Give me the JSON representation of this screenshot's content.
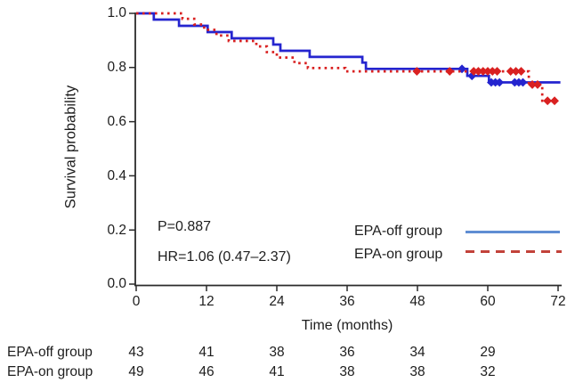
{
  "figure": {
    "background": "#ffffff",
    "text_color": "#1d1d1d",
    "axis_color": "#2b2b2b"
  },
  "chart_data": {
    "type": "line",
    "subtype": "kaplan-meier-survival-steps",
    "title": "",
    "xlabel": "Time (months)",
    "ylabel": "Survival probability",
    "xlim": [
      0,
      72
    ],
    "ylim": [
      0.0,
      1.0
    ],
    "grid": false,
    "legend_position": "lower-right-inside",
    "x_ticks": [
      "0",
      "12",
      "24",
      "36",
      "48",
      "60",
      "72"
    ],
    "y_ticks": [
      "1.0",
      "0.8",
      "0.6",
      "0.4",
      "0.2",
      "0.0"
    ],
    "series": [
      {
        "name": "EPA-off group",
        "line_style": "solid",
        "color": "#2525cf",
        "legend_color": "#5f8dd3",
        "steps": [
          [
            0,
            1.0
          ],
          [
            3.0,
            0.977
          ],
          [
            7.3,
            0.954
          ],
          [
            12.2,
            0.931
          ],
          [
            16.3,
            0.908
          ],
          [
            23.4,
            0.885
          ],
          [
            24.6,
            0.862
          ],
          [
            29.6,
            0.839
          ],
          [
            38.6,
            0.818
          ],
          [
            39.2,
            0.795
          ],
          [
            56.5,
            0.769
          ],
          [
            60.2,
            0.745
          ],
          [
            72.4,
            0.745
          ]
        ],
        "censor_marks": [
          [
            55.6,
            0.795
          ],
          [
            57.3,
            0.769
          ],
          [
            60.6,
            0.745
          ],
          [
            61.3,
            0.745
          ],
          [
            62.0,
            0.745
          ],
          [
            64.6,
            0.745
          ],
          [
            65.3,
            0.745
          ],
          [
            66.0,
            0.745
          ]
        ]
      },
      {
        "name": "EPA-on group",
        "line_style": "dotted",
        "color": "#d92121",
        "legend_color": "#c2423a",
        "steps": [
          [
            0,
            1.0
          ],
          [
            7.9,
            0.98
          ],
          [
            9.9,
            0.959
          ],
          [
            11.6,
            0.939
          ],
          [
            13.7,
            0.918
          ],
          [
            15.8,
            0.898
          ],
          [
            20.5,
            0.878
          ],
          [
            22.3,
            0.857
          ],
          [
            24.0,
            0.837
          ],
          [
            27.0,
            0.816
          ],
          [
            29.3,
            0.798
          ],
          [
            35.7,
            0.786
          ],
          [
            67.0,
            0.737
          ],
          [
            69.3,
            0.677
          ],
          [
            71.8,
            0.677
          ]
        ],
        "censor_marks": [
          [
            47.9,
            0.786
          ],
          [
            53.5,
            0.786
          ],
          [
            57.6,
            0.786
          ],
          [
            58.4,
            0.786
          ],
          [
            59.2,
            0.786
          ],
          [
            60.0,
            0.786
          ],
          [
            60.8,
            0.786
          ],
          [
            61.6,
            0.786
          ],
          [
            63.9,
            0.786
          ],
          [
            64.8,
            0.786
          ],
          [
            65.7,
            0.786
          ],
          [
            67.6,
            0.737
          ],
          [
            68.5,
            0.737
          ],
          [
            70.2,
            0.677
          ],
          [
            71.4,
            0.677
          ]
        ]
      }
    ],
    "annotations": {
      "p_value": "P=0.887",
      "hazard_ratio": "HR=1.06 (0.47–2.37)"
    },
    "risk_table": {
      "time_points": [
        0,
        12,
        24,
        36,
        48,
        60
      ],
      "rows": [
        {
          "label": "EPA-off group",
          "values": [
            43,
            41,
            38,
            36,
            34,
            29
          ]
        },
        {
          "label": "EPA-on group",
          "values": [
            49,
            46,
            41,
            38,
            38,
            32
          ]
        }
      ]
    }
  }
}
